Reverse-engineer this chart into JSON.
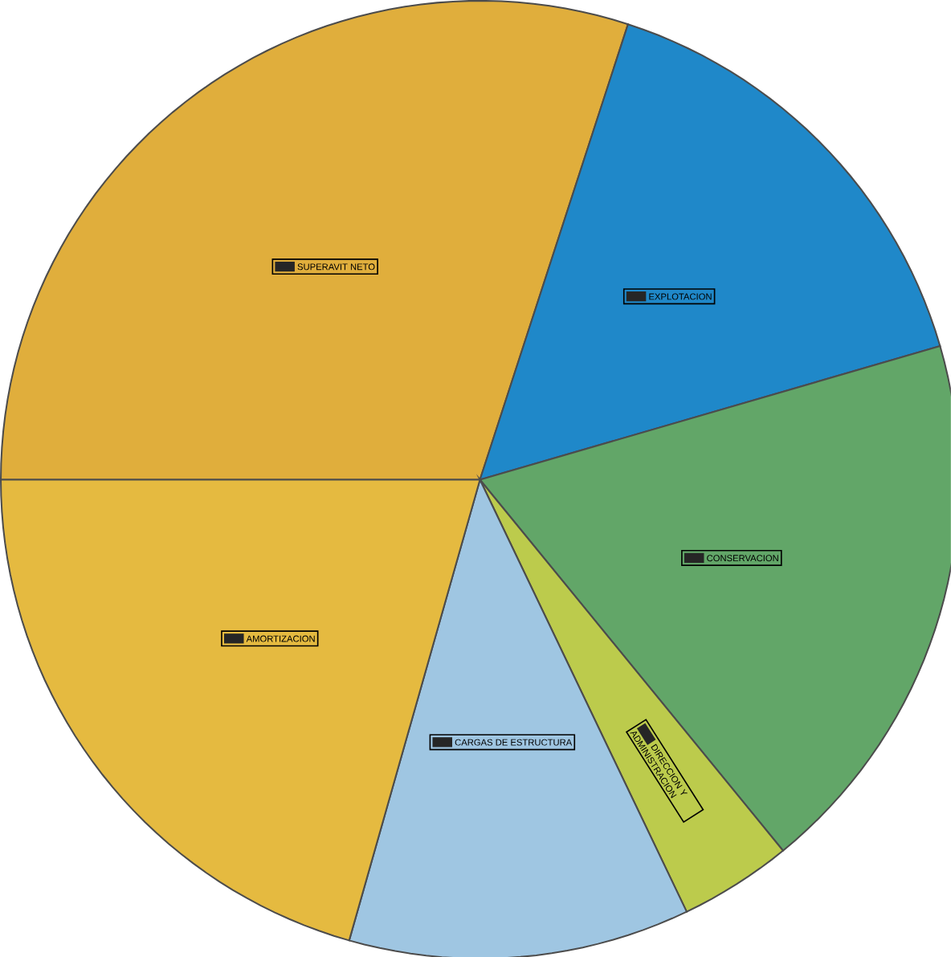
{
  "chart_data": {
    "type": "pie",
    "categories": [
      "SUPERAVIT NETO",
      "EXPLOTACION",
      "CONSERVACION",
      "DIRECCION Y ADMINISTRACION",
      "CARGAS DE ESTRUCTURA",
      "AMORTIZACION"
    ],
    "values": [
      30.0,
      15.5,
      18.6,
      3.8,
      11.5,
      20.6
    ],
    "colors": [
      "#e0ae3c",
      "#1f88c9",
      "#62a668",
      "#bccb4c",
      "#9fc6e2",
      "#e5ba40"
    ]
  }
}
